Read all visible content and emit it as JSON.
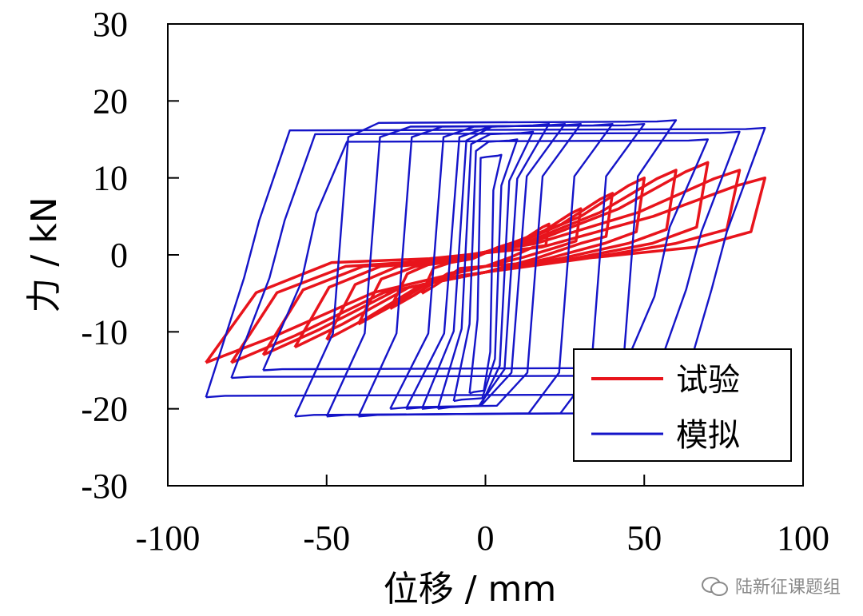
{
  "chart_data": {
    "type": "line",
    "xlabel": "位移 / mm",
    "ylabel": "力 / kN",
    "xlim": [
      -100,
      100
    ],
    "ylim": [
      -30,
      30
    ],
    "x_ticks": [
      -100,
      -50,
      0,
      50,
      100
    ],
    "y_ticks": [
      30,
      20,
      10,
      0,
      -10,
      -20,
      -30
    ],
    "grid": false,
    "legend_position": "bottom-right",
    "series": [
      {
        "name": "试验",
        "color": "#e8141c",
        "loops": [
          {
            "amp": 20,
            "pos_peak": 4,
            "neg_peak": -5,
            "pinch": 1
          },
          {
            "amp": 30,
            "pos_peak": 6,
            "neg_peak": -7,
            "pinch": 1
          },
          {
            "amp": 40,
            "pos_peak": 8,
            "neg_peak": -9,
            "pinch": 1.5
          },
          {
            "amp": 50,
            "pos_peak": 10,
            "neg_peak": -11,
            "pinch": 1.5
          },
          {
            "amp": 60,
            "pos_peak": 11,
            "neg_peak": -12,
            "pinch": 1.5
          },
          {
            "amp": 70,
            "pos_peak": 12,
            "neg_peak": -13,
            "pinch": 1.5
          },
          {
            "amp": 80,
            "pos_peak": 11,
            "neg_peak": -14,
            "pinch": 1.5
          },
          {
            "amp": 88,
            "pos_peak": 10,
            "neg_peak": -14,
            "pinch": 1
          }
        ]
      },
      {
        "name": "模拟",
        "color": "#1414c8",
        "loops": [
          {
            "amp": 5,
            "pos_peak": 13,
            "neg_peak": -18,
            "yield": 14
          },
          {
            "amp": 10,
            "pos_peak": 15,
            "neg_peak": -19,
            "yield": 15
          },
          {
            "amp": 15,
            "pos_peak": 16,
            "neg_peak": -20,
            "yield": 16
          },
          {
            "amp": 20,
            "pos_peak": 17,
            "neg_peak": -20,
            "yield": 16.5
          },
          {
            "amp": 25,
            "pos_peak": 17,
            "neg_peak": -20,
            "yield": 17
          },
          {
            "amp": 30,
            "pos_peak": 17,
            "neg_peak": -20,
            "yield": 17
          },
          {
            "amp": 40,
            "pos_peak": 17,
            "neg_peak": -21,
            "yield": 17
          },
          {
            "amp": 50,
            "pos_peak": 17,
            "neg_peak": -21,
            "yield": 17
          },
          {
            "amp": 60,
            "pos_peak": 17.5,
            "neg_peak": -21,
            "yield": 17
          },
          {
            "amp": 70,
            "pos_peak": 15,
            "neg_peak": -15,
            "yield": 6
          },
          {
            "amp": 80,
            "pos_peak": 16,
            "neg_peak": -16,
            "yield": 5
          },
          {
            "amp": 88,
            "pos_peak": 16.5,
            "neg_peak": -18.5,
            "yield": 5
          }
        ]
      }
    ]
  },
  "watermark": "陆新征课题组"
}
